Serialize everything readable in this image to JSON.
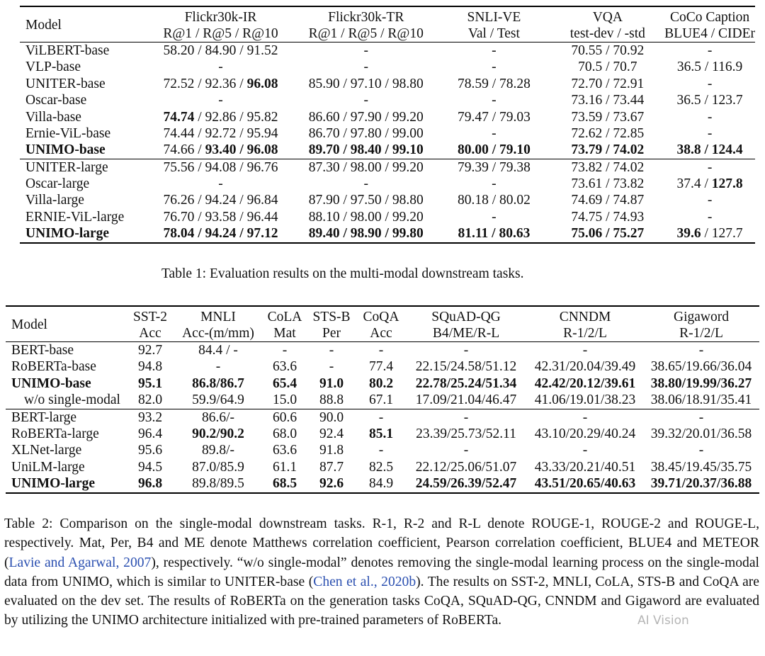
{
  "table1": {
    "headers": {
      "model": "Model",
      "cols": [
        {
          "top": "Flickr30k-IR",
          "sub": "R@1 / R@5 / R@10"
        },
        {
          "top": "Flickr30k-TR",
          "sub": "R@1 / R@5 / R@10"
        },
        {
          "top": "SNLI-VE",
          "sub": "Val / Test"
        },
        {
          "top": "VQA",
          "sub": "test-dev / -std"
        },
        {
          "top": "CoCo Caption",
          "sub": "BLUE4 / CIDEr"
        }
      ]
    },
    "rows": [
      {
        "model": "ViLBERT-base",
        "c1": "58.20 / 84.90 / 91.52",
        "c2": "-",
        "c3": "-",
        "c4": "70.55 / 70.92",
        "c5": "-"
      },
      {
        "model": "VLP-base",
        "c1": "-",
        "c2": "-",
        "c3": "-",
        "c4": "70.5 / 70.7",
        "c5": "36.5 / 116.9"
      },
      {
        "model": "UNITER-base",
        "c1a": "72.52 / 92.36 / ",
        "c1b": "96.08",
        "c2": "85.90 / 97.10 / 98.80",
        "c3": "78.59 / 78.28",
        "c4": "72.70 / 72.91",
        "c5": "-"
      },
      {
        "model": "Oscar-base",
        "c1": "-",
        "c2": "-",
        "c3": "-",
        "c4": "73.16 / 73.44",
        "c5": "36.5 / 123.7"
      },
      {
        "model": "Villa-base",
        "c1a": "74.74",
        "c1b": " / 92.86 / 95.82",
        "c2": "86.60 / 97.90 / 99.20",
        "c3": "79.47 / 79.03",
        "c4": "73.59 / 73.67",
        "c5": "-"
      },
      {
        "model": "Ernie-ViL-base",
        "c1": "74.44 / 92.72 / 95.94",
        "c2": "86.70 / 97.80 / 99.00",
        "c3": "-",
        "c4": "72.62 / 72.85",
        "c5": "-"
      },
      {
        "model": "UNIMO-base",
        "c1a": "74.66 / ",
        "c1b": "93.40 / 96.08",
        "c2": "89.70 / 98.40 / 99.10",
        "c3": "80.00 / 79.10",
        "c4": "73.79 / 74.02",
        "c5": "38.8 / 124.4"
      },
      {
        "model": "UNITER-large",
        "c1": "75.56 / 94.08 / 96.76",
        "c2": "87.30 / 98.00 / 99.20",
        "c3": "79.39 / 79.38",
        "c4": "73.82 / 74.02",
        "c5": "-"
      },
      {
        "model": "Oscar-large",
        "c1": "-",
        "c2": "-",
        "c3": "-",
        "c4": "73.61 / 73.82",
        "c5a": "37.4 / ",
        "c5b": "127.8"
      },
      {
        "model": "Villa-large",
        "c1": "76.26 / 94.24 / 96.84",
        "c2": "87.90 / 97.50 / 98.80",
        "c3": "80.18 / 80.02",
        "c4": "74.69 / 74.87",
        "c5": "-"
      },
      {
        "model": "ERNIE-ViL-large",
        "c1": "76.70 / 93.58 / 96.44",
        "c2": "88.10 / 98.00 / 99.20",
        "c3": "-",
        "c4": "74.75 / 74.93",
        "c5": "-"
      },
      {
        "model": "UNIMO-large",
        "c1": "78.04 / 94.24 / 97.12",
        "c2": "89.40 / 98.90 / 99.80",
        "c3": "81.11 / 80.63",
        "c4": "75.06 / 75.27",
        "c5a": "39.6",
        "c5b": " / 127.7"
      }
    ],
    "caption": "Table 1:  Evaluation results on the multi-modal downstream tasks."
  },
  "table2": {
    "headers": {
      "model": "Model",
      "cols": [
        {
          "top": "SST-2",
          "sub": "Acc"
        },
        {
          "top": "MNLI",
          "sub": "Acc-(m/mm)"
        },
        {
          "top": "CoLA",
          "sub": "Mat"
        },
        {
          "top": "STS-B",
          "sub": "Per"
        },
        {
          "top": "CoQA",
          "sub": "Acc"
        },
        {
          "top": "SQuAD-QG",
          "sub": "B4/ME/R-L"
        },
        {
          "top": "CNNDM",
          "sub": "R-1/2/L"
        },
        {
          "top": "Gigaword",
          "sub": "R-1/2/L"
        }
      ]
    },
    "rows": [
      {
        "model": "BERT-base",
        "v": [
          "92.7",
          "84.4 / -",
          "-",
          "-",
          "-",
          "-",
          "-",
          "-"
        ]
      },
      {
        "model": "RoBERTa-base",
        "v": [
          "94.8",
          "-",
          "63.6",
          "-",
          "77.4",
          "22.15/24.58/51.12",
          "42.31/20.04/39.49",
          "38.65/19.66/36.04"
        ]
      },
      {
        "model": "UNIMO-base",
        "v": [
          "95.1",
          "86.8/86.7",
          "65.4",
          "91.0",
          "80.2",
          "22.78/25.24/51.34",
          "42.42/20.12/39.61",
          "38.80/19.99/36.27"
        ]
      },
      {
        "model": "w/o single-modal",
        "v": [
          "82.0",
          "59.9/64.9",
          "15.0",
          "88.8",
          "67.1",
          "17.09/21.04/46.47",
          "41.06/19.01/38.23",
          "38.06/18.91/35.41"
        ]
      },
      {
        "model": "BERT-large",
        "v": [
          "93.2",
          "86.6/-",
          "60.6",
          "90.0",
          "-",
          "-",
          "-",
          "-"
        ]
      },
      {
        "model": "RoBERTa-large",
        "v": [
          "96.4",
          "90.2/90.2",
          "68.0",
          "92.4",
          "85.1",
          "23.39/25.73/52.11",
          "43.10/20.29/40.24",
          "39.32/20.01/36.58"
        ]
      },
      {
        "model": "XLNet-large",
        "v": [
          "95.6",
          "89.8/-",
          "63.6",
          "91.8",
          "-",
          "-",
          "-",
          "-"
        ]
      },
      {
        "model": "UniLM-large",
        "v": [
          "94.5",
          "87.0/85.9",
          "61.1",
          "87.7",
          "82.5",
          "22.12/25.06/51.07",
          "43.33/20.21/40.51",
          "38.45/19.45/35.75"
        ]
      },
      {
        "model": "UNIMO-large",
        "v": [
          "96.8",
          "89.8/89.5",
          "68.5",
          "92.6",
          "84.9",
          "24.59/26.39/52.47",
          "43.51/20.65/40.63",
          "39.71/20.37/36.88"
        ]
      }
    ]
  },
  "caption2": {
    "p1": "Table 2:   Comparison on the single-modal downstream tasks. R-1, R-2 and R-L denote ROUGE-1, ROUGE-2 and ROUGE-L, respectively. Mat, Per, B4 and ME denote Matthews correlation coefficient, Pearson correlation coefficient, BLUE4 and METEOR (",
    "cite1": "Lavie and Agarwal, 2007",
    "p2": "), respectively. “w/o single-modal” denotes removing the single-modal learning process on the single-modal data from UNIMO, which is similar to UNITER-base (",
    "cite2": "Chen et al., 2020b",
    "p3": "). The results on SST-2, MNLI, CoLA, STS-B and CoQA are evaluated on the dev set. The results of RoBERTa on the generation tasks CoQA, SQuAD-QG, CNNDM and Gigaword are evaluated by utilizing the UNIMO architecture initialized with pre-trained parameters of RoBERTa."
  },
  "watermark": "AI Vision"
}
